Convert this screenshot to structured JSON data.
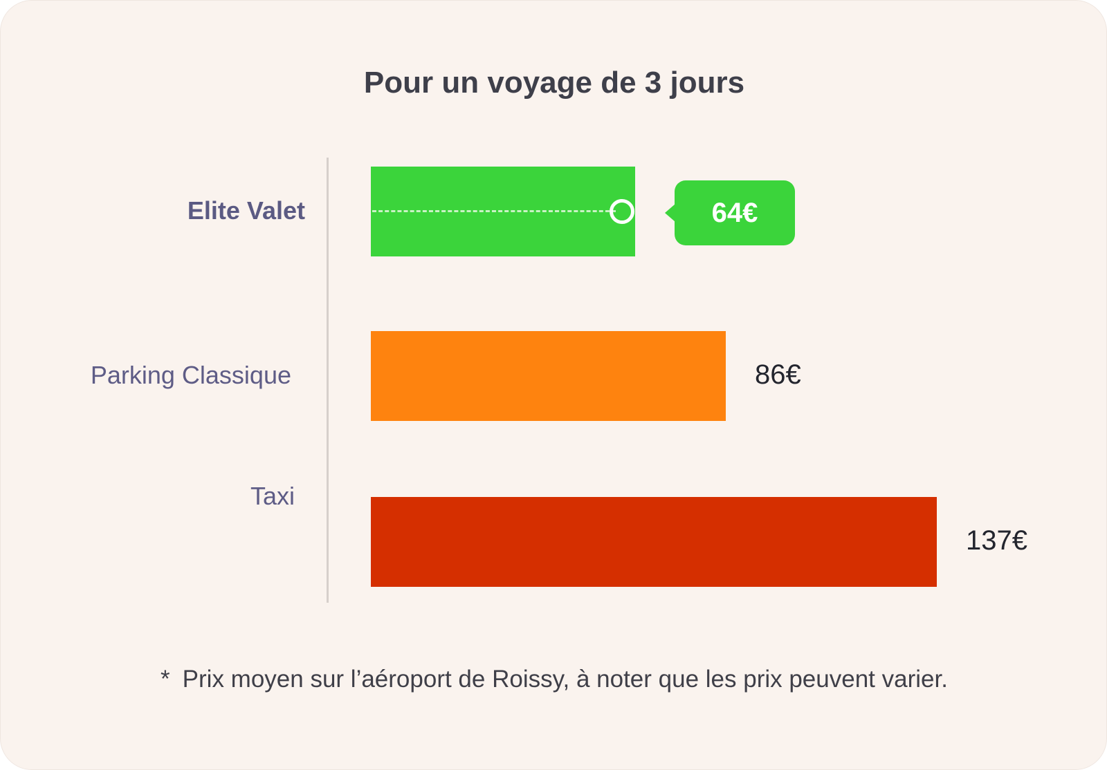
{
  "chart_data": {
    "type": "bar",
    "orientation": "horizontal",
    "title": "Pour un voyage de 3 jours",
    "categories": [
      "Elite Valet",
      "Parking Classique",
      "Taxi"
    ],
    "values": [
      64,
      86,
      137
    ],
    "value_labels": [
      "64€",
      "86€",
      "137€"
    ],
    "colors": [
      "#3bd43b",
      "#fe830f",
      "#d52f00"
    ],
    "highlight_category": "Elite Valet",
    "grid": false,
    "footnote": "Prix moyen sur l’aéroport de Roissy, à noter que les prix peuvent varier.",
    "footnote_marker": "*"
  },
  "colors": {
    "background": "#faf3ee",
    "title": "#3e3f4a",
    "category_label": "#5e5c86",
    "value_label": "#23252e",
    "callout_text": "#ffffff"
  }
}
